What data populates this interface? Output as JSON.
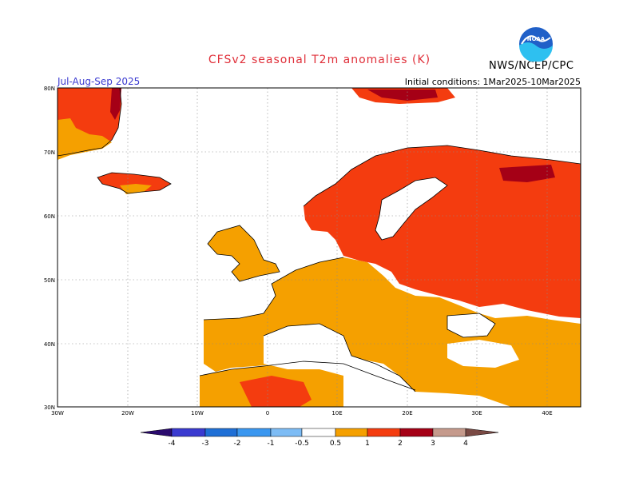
{
  "header": {
    "title": "CFSv2 seasonal T2m anomalies (K)",
    "agency": "NWS/NCEP/CPC",
    "period": "Jul-Aug-Sep 2025",
    "initial_conditions": "Initial conditions: 1Mar2025-10Mar2025",
    "logo_text": "NOAA"
  },
  "map": {
    "lon_labels": [
      "30W",
      "20W",
      "10W",
      "0",
      "10E",
      "20E",
      "30E",
      "40E"
    ],
    "lat_labels": [
      "80N",
      "70N",
      "60N",
      "50N",
      "40N",
      "30N"
    ]
  },
  "colorbar": {
    "labels": [
      "-4",
      "-3",
      "-2",
      "-1",
      "-0.5",
      "0.5",
      "1",
      "2",
      "3",
      "4"
    ],
    "colors": {
      "below_minus4": "#2a0a6e",
      "minus4_minus3": "#3a3ad0",
      "minus3_minus2": "#1f6fd6",
      "minus2_minus1": "#3a97f0",
      "minus1_minus05": "#7dbcf5",
      "neutral": "#ffffff",
      "p05_p1": "#f5a000",
      "p1_p2": "#f43c0f",
      "p2_p3": "#a50016",
      "p3_p4": "#c59a8c",
      "above4": "#7a4a44"
    }
  }
}
